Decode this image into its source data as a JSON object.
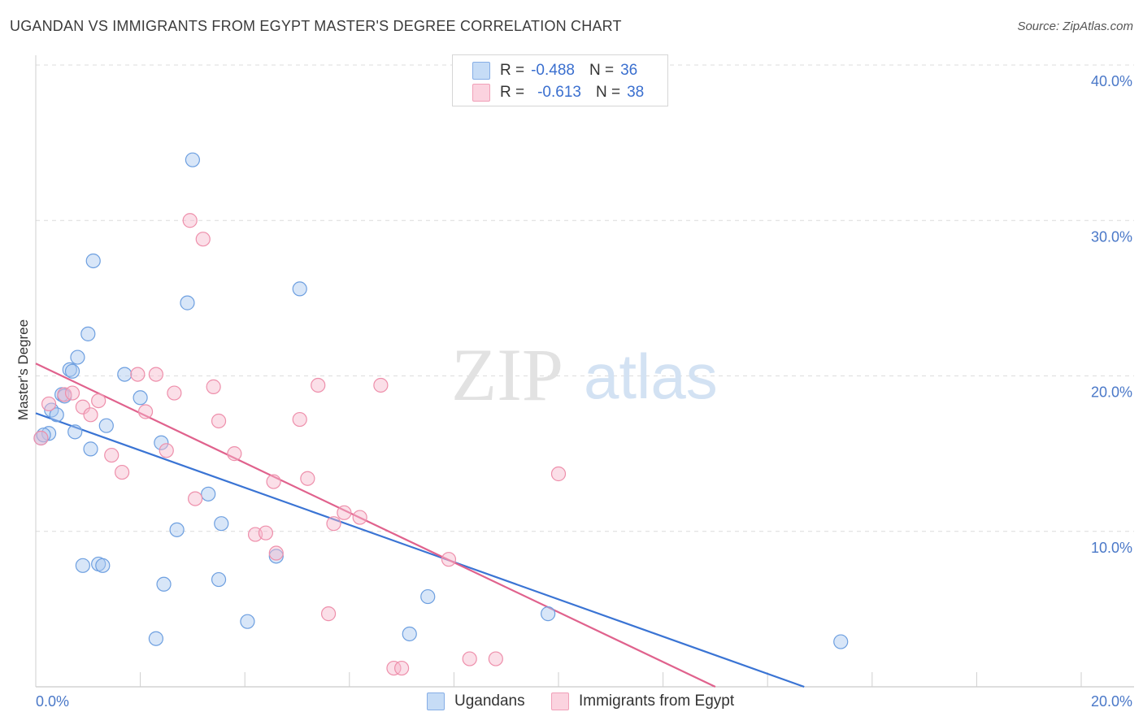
{
  "header": {
    "title": "UGANDAN VS IMMIGRANTS FROM EGYPT MASTER'S DEGREE CORRELATION CHART",
    "source": "Source: ZipAtlas.com"
  },
  "watermark": {
    "zip": "ZIP",
    "atlas": "atlas"
  },
  "legend": {
    "rows": [
      {
        "r_label": "R =",
        "r_value": "-0.488",
        "n_label": "N =",
        "n_value": "36",
        "color": "#a8c8f0"
      },
      {
        "r_label": "R =",
        "r_value": "-0.613",
        "n_label": "N =",
        "n_value": "38",
        "color": "#f7b8cb"
      }
    ]
  },
  "bottom_legend": {
    "items": [
      {
        "label": "Ugandans",
        "color": "#a8c8f0"
      },
      {
        "label": "Immigrants from Egypt",
        "color": "#f7b8cb"
      }
    ]
  },
  "chart_data": {
    "type": "scatter",
    "title": "UGANDAN VS IMMIGRANTS FROM EGYPT MASTER'S DEGREE CORRELATION CHART",
    "xlabel": "",
    "ylabel": "Master's Degree",
    "xlim": [
      0,
      20
    ],
    "ylim": [
      0,
      40
    ],
    "x_tick_labels": [
      "0.0%",
      "20.0%"
    ],
    "y_ticks": [
      10,
      20,
      30,
      40
    ],
    "y_tick_labels": [
      "10.0%",
      "20.0%",
      "30.0%",
      "40.0%"
    ],
    "grid": true,
    "legend_position": "top-center",
    "series": [
      {
        "name": "Ugandans",
        "color": "#a8c8f0",
        "stroke": "#6d9fe0",
        "trend_color": "#3a74d4",
        "trend": {
          "x0": 0,
          "y0": 17.6,
          "x1": 14.7,
          "y1": 0
        },
        "points": [
          [
            0.1,
            16.0
          ],
          [
            0.25,
            16.3
          ],
          [
            0.3,
            17.8
          ],
          [
            0.4,
            17.5
          ],
          [
            0.5,
            18.8
          ],
          [
            0.65,
            20.4
          ],
          [
            0.7,
            20.3
          ],
          [
            0.75,
            16.4
          ],
          [
            0.8,
            21.2
          ],
          [
            0.9,
            7.8
          ],
          [
            1.0,
            22.7
          ],
          [
            1.05,
            15.3
          ],
          [
            1.1,
            27.4
          ],
          [
            1.2,
            7.9
          ],
          [
            1.28,
            7.8
          ],
          [
            1.35,
            16.8
          ],
          [
            1.7,
            20.1
          ],
          [
            2.0,
            18.6
          ],
          [
            2.3,
            3.1
          ],
          [
            2.4,
            15.7
          ],
          [
            2.45,
            6.6
          ],
          [
            2.7,
            10.1
          ],
          [
            2.9,
            24.7
          ],
          [
            3.0,
            33.9
          ],
          [
            3.3,
            12.4
          ],
          [
            3.5,
            6.9
          ],
          [
            3.55,
            10.5
          ],
          [
            4.05,
            4.2
          ],
          [
            4.6,
            8.4
          ],
          [
            5.05,
            25.6
          ],
          [
            7.15,
            3.4
          ],
          [
            7.5,
            5.8
          ],
          [
            9.8,
            4.7
          ],
          [
            15.4,
            2.9
          ],
          [
            0.15,
            16.2
          ],
          [
            0.55,
            18.7
          ]
        ]
      },
      {
        "name": "Immigrants from Egypt",
        "color": "#f7b8cb",
        "stroke": "#ee8fab",
        "trend_color": "#e0628d",
        "trend": {
          "x0": 0,
          "y0": 20.8,
          "x1": 13.0,
          "y1": 0
        },
        "points": [
          [
            0.1,
            16.0
          ],
          [
            0.25,
            18.2
          ],
          [
            0.55,
            18.8
          ],
          [
            0.7,
            18.9
          ],
          [
            0.9,
            18.0
          ],
          [
            1.05,
            17.5
          ],
          [
            1.2,
            18.4
          ],
          [
            1.45,
            14.9
          ],
          [
            1.65,
            13.8
          ],
          [
            1.95,
            20.1
          ],
          [
            2.1,
            17.7
          ],
          [
            2.3,
            20.1
          ],
          [
            2.5,
            15.2
          ],
          [
            2.65,
            18.9
          ],
          [
            2.95,
            30.0
          ],
          [
            3.05,
            12.1
          ],
          [
            3.2,
            28.8
          ],
          [
            3.4,
            19.3
          ],
          [
            3.5,
            17.1
          ],
          [
            3.8,
            15.0
          ],
          [
            4.2,
            9.8
          ],
          [
            4.4,
            9.9
          ],
          [
            4.55,
            13.2
          ],
          [
            4.6,
            8.6
          ],
          [
            5.05,
            17.2
          ],
          [
            5.2,
            13.4
          ],
          [
            5.4,
            19.4
          ],
          [
            5.6,
            4.7
          ],
          [
            5.7,
            10.5
          ],
          [
            5.9,
            11.2
          ],
          [
            6.2,
            10.9
          ],
          [
            6.6,
            19.4
          ],
          [
            6.85,
            1.2
          ],
          [
            7.0,
            1.2
          ],
          [
            7.9,
            8.2
          ],
          [
            8.3,
            1.8
          ],
          [
            8.8,
            1.8
          ],
          [
            10.0,
            13.7
          ]
        ]
      }
    ]
  }
}
